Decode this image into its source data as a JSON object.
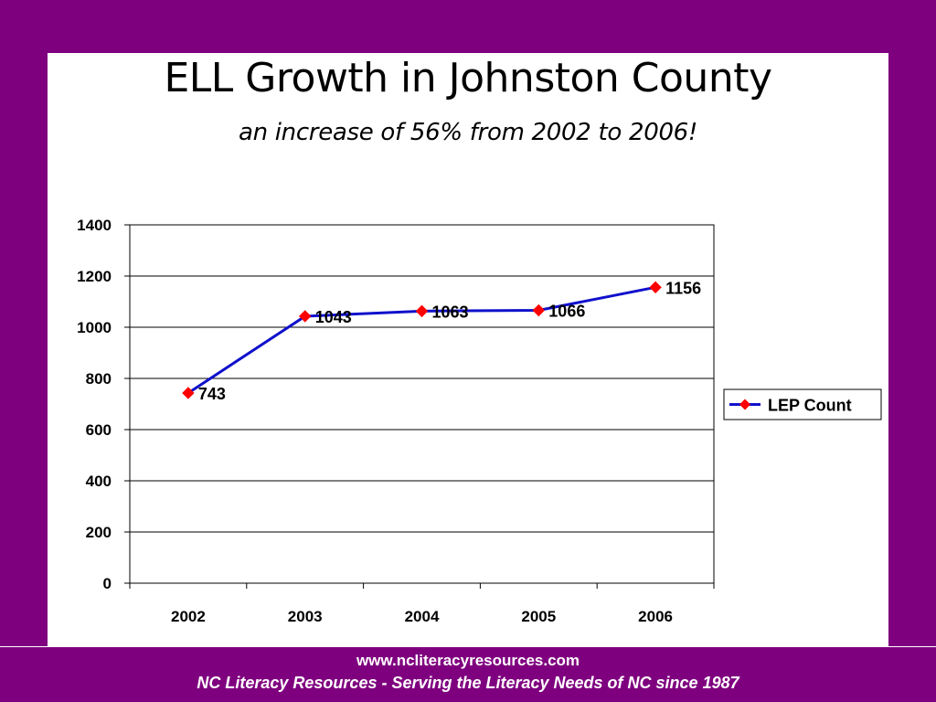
{
  "slide": {
    "title": "ELL Growth in Johnston County",
    "subtitle": "an increase of 56% from 2002 to 2006!"
  },
  "colors": {
    "background": "#7f007f",
    "panel": "#ffffff",
    "series_line": "#1010cc",
    "series_marker": "#ff0000"
  },
  "chart_data": {
    "type": "line",
    "categories": [
      "2002",
      "2003",
      "2004",
      "2005",
      "2006"
    ],
    "series": [
      {
        "name": "LEP Count",
        "values": [
          743,
          1043,
          1063,
          1066,
          1156
        ],
        "data_labels": [
          "743",
          "1043",
          "1063",
          "1066",
          "1156"
        ]
      }
    ],
    "ylim": [
      0,
      1400
    ],
    "yticks": [
      0,
      200,
      400,
      600,
      800,
      1000,
      1200,
      1400
    ],
    "grid": true,
    "legend": {
      "position": "right",
      "entries": [
        "LEP Count"
      ]
    },
    "marker": "diamond"
  },
  "footer": {
    "url": "www.ncliteracyresources.com",
    "tagline": "NC Literacy Resources - Serving the Literacy Needs of NC since 1987"
  }
}
